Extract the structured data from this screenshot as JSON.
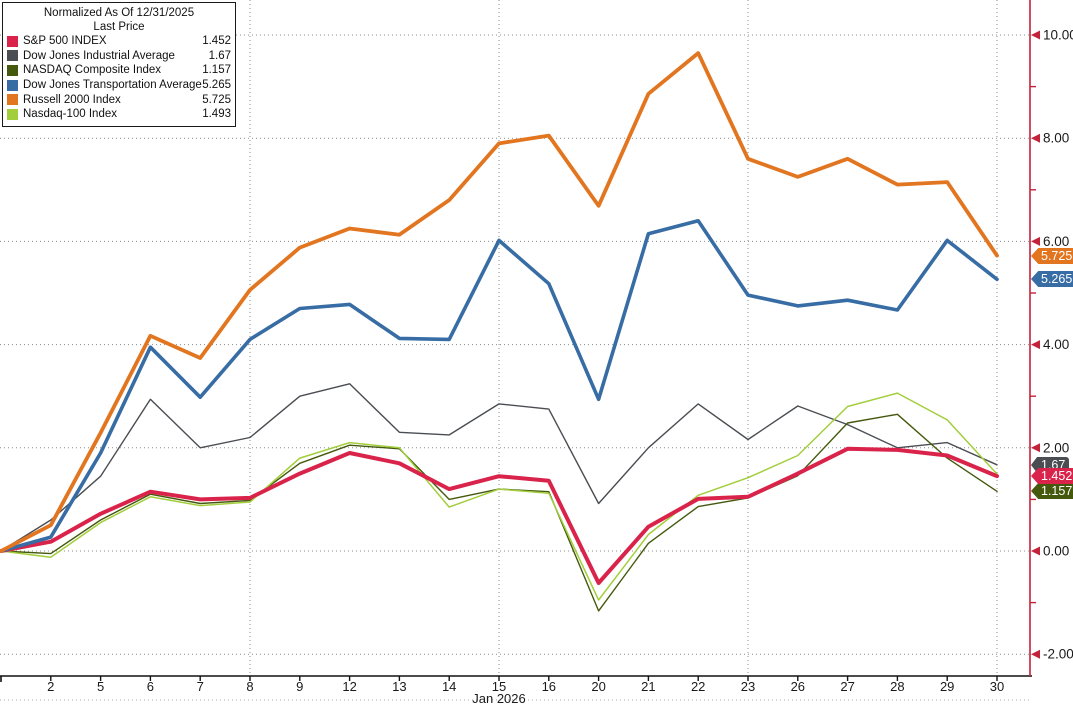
{
  "legend": {
    "title_line1": "Normalized As Of 12/31/2025",
    "title_line2": "Last Price",
    "items": [
      {
        "label": "S&P 500 INDEX",
        "value": "1.452",
        "color": "#D9234B"
      },
      {
        "label": "Dow Jones Industrial Average",
        "value": "1.67",
        "color": "#4A4D52"
      },
      {
        "label": "NASDAQ Composite Index",
        "value": "1.157",
        "color": "#44590D"
      },
      {
        "label": "Dow Jones Transportation Average",
        "value": "5.265",
        "color": "#376DA4"
      },
      {
        "label": "Russell 2000 Index",
        "value": "5.725",
        "color": "#E2751F"
      },
      {
        "label": "Nasdaq-100 Index",
        "value": "1.493",
        "color": "#A2CE3C"
      }
    ]
  },
  "axis": {
    "x_month_label": "Jan 2026",
    "x_tick_labels": [
      "2",
      "5",
      "6",
      "7",
      "8",
      "9",
      "12",
      "13",
      "14",
      "15",
      "16",
      "20",
      "21",
      "22",
      "23",
      "26",
      "27",
      "28",
      "29",
      "30"
    ],
    "y_major_ticks": [
      {
        "v": 10,
        "label": "10.00"
      },
      {
        "v": 8,
        "label": "8.00"
      },
      {
        "v": 6,
        "label": "6.00"
      },
      {
        "v": 4,
        "label": "4.00"
      },
      {
        "v": 2,
        "label": "2.00"
      },
      {
        "v": 0,
        "label": "0.00"
      },
      {
        "v": -2,
        "label": "-2.00"
      }
    ],
    "y_minor_ticks": [
      9,
      7,
      5,
      3,
      1,
      -1
    ],
    "axis_color": "#C4223A",
    "grid_color": "#8C8C8C",
    "text_color": "#1a1a1a"
  },
  "badges": [
    {
      "value": 5.725,
      "label": "5.725",
      "color": "#E2751F",
      "z": 5
    },
    {
      "value": 5.265,
      "label": "5.265",
      "color": "#376DA4",
      "z": 5
    },
    {
      "value": 1.67,
      "label": "1.67",
      "color": "#4A4D52",
      "z": 3
    },
    {
      "value": 1.452,
      "label": "1.452",
      "color": "#D9234B",
      "z": 6
    },
    {
      "value": 1.157,
      "label": "1.157",
      "color": "#44590D",
      "z": 4
    }
  ],
  "chart_data": {
    "type": "line",
    "title": "Normalized As Of 12/31/2025 - Last Price",
    "x_dates": [
      "12/31",
      "1/2",
      "1/5",
      "1/6",
      "1/7",
      "1/8",
      "1/9",
      "1/12",
      "1/13",
      "1/14",
      "1/15",
      "1/16",
      "1/20",
      "1/21",
      "1/22",
      "1/23",
      "1/26",
      "1/27",
      "1/28",
      "1/29",
      "1/30"
    ],
    "xlabel": "Jan 2026",
    "ylim": [
      -2.45,
      10.65
    ],
    "grid": true,
    "grid_vertical_at_index": [
      5,
      10,
      15,
      20
    ],
    "legend_position": "top-left",
    "series": [
      {
        "name": "Dow Jones Industrial Average",
        "color": "#4A4D52",
        "width": 1.4,
        "values": [
          0,
          0.6,
          1.45,
          2.94,
          2.0,
          2.2,
          3.0,
          3.24,
          2.3,
          2.25,
          2.85,
          2.75,
          0.92,
          2.0,
          2.85,
          2.16,
          2.81,
          2.45,
          2.0,
          2.1,
          1.67
        ],
        "last": 1.67
      },
      {
        "name": "NASDAQ Composite Index",
        "color": "#44590D",
        "width": 1.4,
        "values": [
          0,
          -0.05,
          0.6,
          1.1,
          0.92,
          0.98,
          1.7,
          2.05,
          1.98,
          1.0,
          1.2,
          1.15,
          -1.16,
          0.15,
          0.86,
          1.03,
          1.46,
          2.48,
          2.65,
          1.8,
          1.157
        ],
        "last": 1.157
      },
      {
        "name": "Nasdaq-100 Index",
        "color": "#A2CE3C",
        "width": 1.5,
        "values": [
          0,
          -0.12,
          0.55,
          1.05,
          0.88,
          0.95,
          1.8,
          2.1,
          2.0,
          0.85,
          1.2,
          1.12,
          -0.95,
          0.32,
          1.08,
          1.42,
          1.85,
          2.8,
          3.06,
          2.54,
          1.493
        ],
        "last": 1.493
      },
      {
        "name": "S&P 500 INDEX",
        "color": "#D9234B",
        "width": 4,
        "values": [
          0,
          0.18,
          0.72,
          1.15,
          1.0,
          1.03,
          1.5,
          1.9,
          1.7,
          1.2,
          1.45,
          1.36,
          -0.62,
          0.47,
          1.01,
          1.05,
          1.5,
          1.98,
          1.96,
          1.85,
          1.452
        ],
        "last": 1.452
      },
      {
        "name": "Dow Jones Transportation Average",
        "color": "#376DA4",
        "width": 3.6,
        "values": [
          0,
          0.27,
          1.9,
          3.95,
          2.98,
          4.1,
          4.7,
          4.78,
          4.12,
          4.1,
          6.02,
          5.18,
          2.94,
          6.15,
          6.4,
          4.96,
          4.75,
          4.86,
          4.67,
          6.02,
          5.265
        ],
        "last": 5.265
      },
      {
        "name": "Russell 2000 Index",
        "color": "#E2751F",
        "width": 3.8,
        "values": [
          0,
          0.5,
          2.29,
          4.17,
          3.74,
          5.06,
          5.88,
          6.25,
          6.13,
          6.8,
          7.9,
          8.05,
          6.69,
          8.86,
          9.65,
          7.6,
          7.25,
          7.6,
          7.1,
          7.15,
          5.725
        ],
        "last": 5.725
      }
    ]
  }
}
